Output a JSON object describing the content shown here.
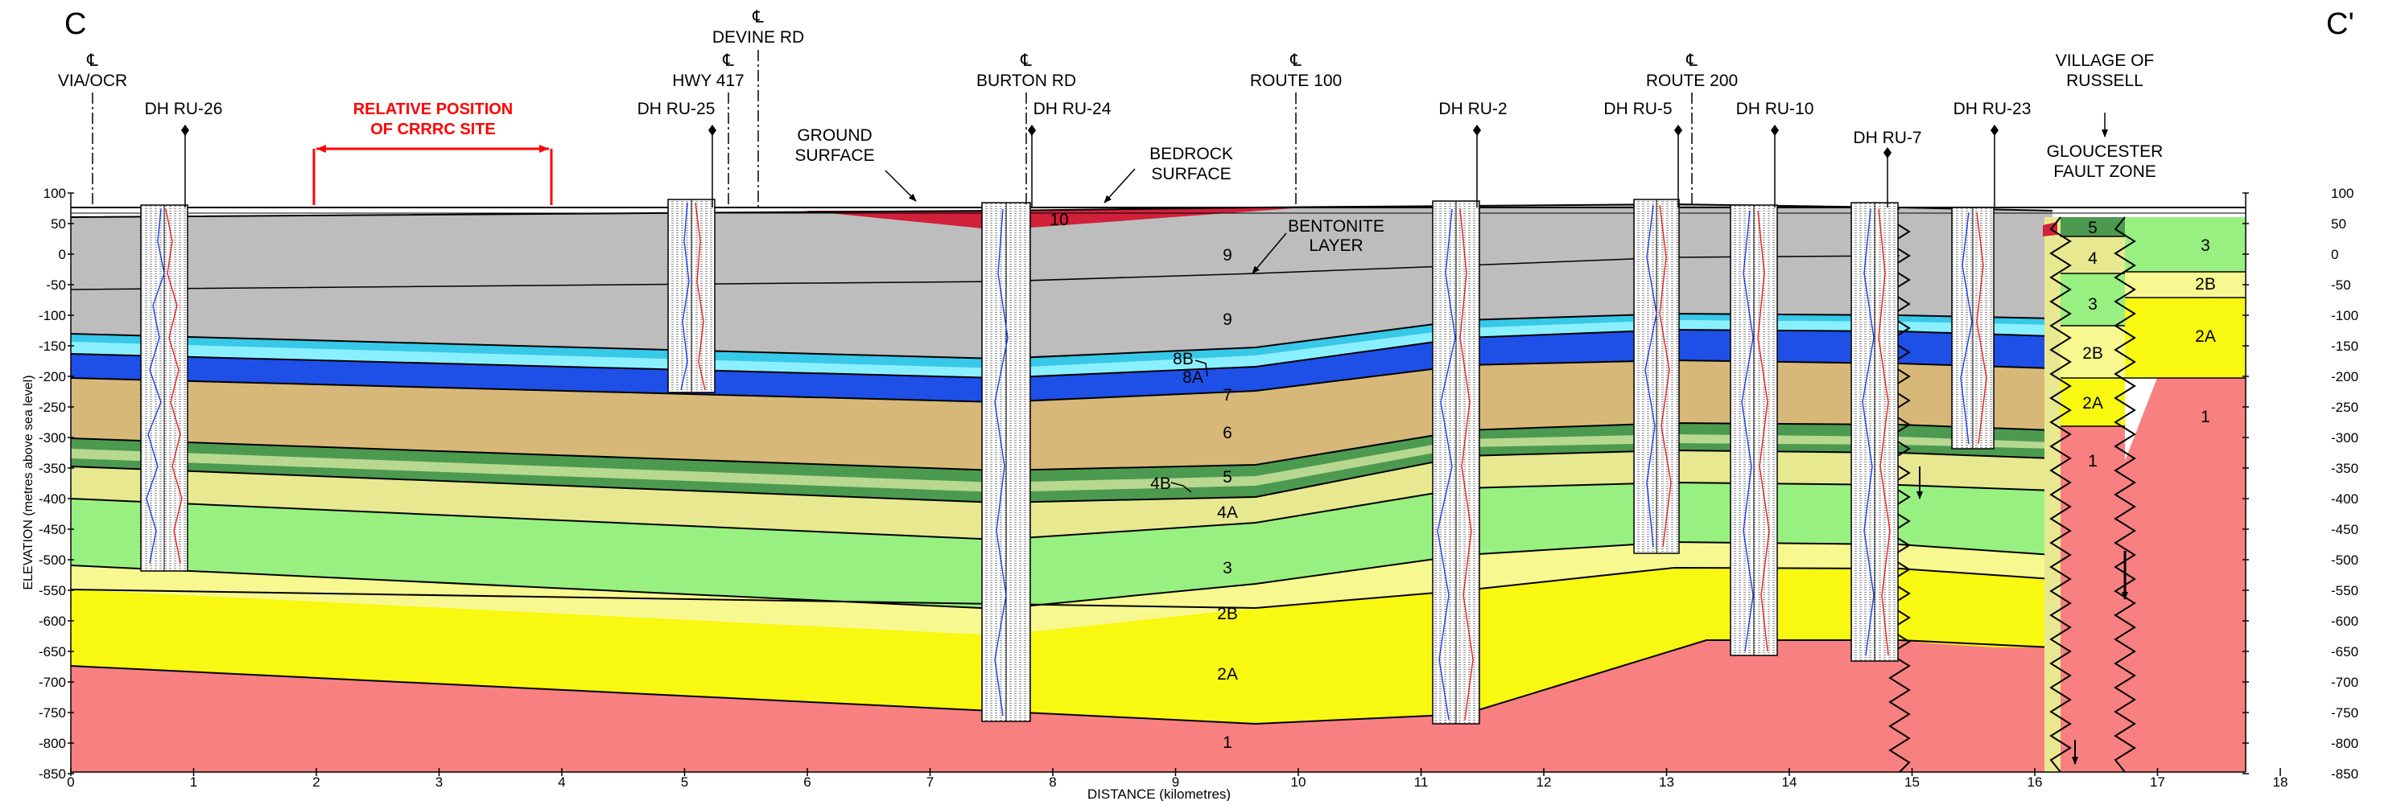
{
  "section": {
    "start_label": "C",
    "end_label": "C'"
  },
  "axes": {
    "y_title": "ELEVATION (metres above sea level)",
    "x_title": "DISTANCE (kilometres)",
    "y_ticks": [
      "100",
      "50",
      "0",
      "-50",
      "-100",
      "-150",
      "-200",
      "-250",
      "-300",
      "-350",
      "-400",
      "-450",
      "-500",
      "-550",
      "-600",
      "-650",
      "-700",
      "-750",
      "-800",
      "-850"
    ],
    "x_ticks": [
      "0",
      "1",
      "2",
      "3",
      "4",
      "5",
      "6",
      "7",
      "8",
      "9",
      "10",
      "11",
      "12",
      "13",
      "14",
      "15",
      "16",
      "17",
      "18"
    ]
  },
  "road_symbol": "℄",
  "roads": {
    "via_ocr": "VIA/OCR",
    "hwy_417": "HWY 417",
    "devine_rd": "DEVINE RD",
    "burton_rd": "BURTON RD",
    "route_100": "ROUTE 100",
    "route_200": "ROUTE 200"
  },
  "boreholes": {
    "ru26": "DH RU-26",
    "ru25": "DH RU-25",
    "ru24": "DH RU-24",
    "ru2": "DH RU-2",
    "ru5": "DH RU-5",
    "ru10": "DH RU-10",
    "ru7": "DH RU-7",
    "ru23": "DH RU-23"
  },
  "annotations": {
    "crrrc_line1": "RELATIVE POSITION",
    "crrrc_line2": "OF CRRRC SITE",
    "ground_line1": "GROUND",
    "ground_line2": "SURFACE",
    "bedrock_line1": "BEDROCK",
    "bedrock_line2": "SURFACE",
    "bentonite_line1": "BENTONITE",
    "bentonite_line2": "LAYER",
    "russell_line1": "VILLAGE OF",
    "russell_line2": "RUSSELL",
    "gfz_line1": "GLOUCESTER",
    "gfz_line2": "FAULT ZONE"
  },
  "units": {
    "u10": "10",
    "u9": "9",
    "u8b": "8B",
    "u8a": "8A",
    "u7": "7",
    "u6": "6",
    "u5": "5",
    "u4b": "4B",
    "u4a": "4A",
    "u4": "4",
    "u3": "3",
    "u2b": "2B",
    "u2a": "2A",
    "u1": "1"
  },
  "colors": {
    "unit_10": "#d0203a",
    "unit_9": "#bdbdbd",
    "unit_8b": "#38c8e8",
    "unit_8a": "#8af0ff",
    "unit_7": "#1e50e8",
    "unit_6": "#d8b878",
    "unit_5": "#4c9a50",
    "unit_4b": "#b8d890",
    "unit_4a": "#e8e890",
    "unit_3": "#98f080",
    "unit_2b": "#f8f890",
    "unit_2a": "#f8f810",
    "unit_1": "#f88080",
    "crrrc": "#ff0000"
  }
}
